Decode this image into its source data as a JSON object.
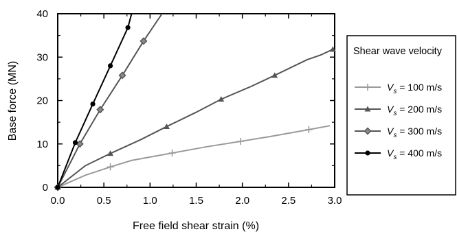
{
  "chart_data": {
    "type": "line",
    "title": "",
    "xlabel": "Free field shear strain (%)",
    "ylabel": "Base force (MN)",
    "xlim": [
      0,
      3.0
    ],
    "ylim": [
      0,
      40
    ],
    "xticks": [
      "0.0",
      "0.5",
      "1.0",
      "1.5",
      "2.0",
      "2.5",
      "3.0"
    ],
    "yticks": [
      "0",
      "10",
      "20",
      "30",
      "40"
    ],
    "legend": {
      "title": "Shear wave velocity",
      "placement": "right-outside"
    },
    "series": [
      {
        "name": "V_s = 100 m/s",
        "name_prefix": "V",
        "name_sub": "s",
        "name_suffix": " = 100 m/s",
        "color": "#9a9a9a",
        "marker": "plus",
        "x": [
          0,
          0.3,
          0.57,
          0.8,
          1.24,
          1.6,
          1.98,
          2.3,
          2.72,
          2.95
        ],
        "y": [
          0,
          2.8,
          4.7,
          6.2,
          7.9,
          9.3,
          10.6,
          11.7,
          13.3,
          14.2
        ],
        "markers_x": [
          0,
          0.57,
          1.24,
          1.98,
          2.72
        ],
        "markers_y": [
          0,
          4.7,
          7.9,
          10.6,
          13.3
        ]
      },
      {
        "name": "V_s = 200 m/s",
        "name_prefix": "V",
        "name_sub": "s",
        "name_suffix": " = 200 m/s",
        "color": "#555555",
        "marker": "triangle",
        "x": [
          0,
          0.3,
          0.57,
          0.9,
          1.18,
          1.5,
          1.77,
          2.1,
          2.35,
          2.7,
          2.85,
          2.98
        ],
        "y": [
          0,
          5.0,
          7.8,
          11.0,
          14.0,
          17.3,
          20.3,
          23.3,
          25.8,
          29.4,
          30.5,
          31.8
        ],
        "markers_x": [
          0,
          0.57,
          1.18,
          1.77,
          2.35,
          2.98
        ],
        "markers_y": [
          0,
          7.8,
          14.0,
          20.3,
          25.8,
          31.8
        ]
      },
      {
        "name": "V_s = 300 m/s",
        "name_prefix": "V",
        "name_sub": "s",
        "name_suffix": " = 300 m/s",
        "color": "#555555",
        "marker": "diamond",
        "x": [
          0,
          0.24,
          0.46,
          0.7,
          0.93,
          1.13
        ],
        "y": [
          0,
          10.0,
          17.9,
          25.8,
          33.7,
          40.0
        ],
        "markers_x": [
          0,
          0.24,
          0.46,
          0.7,
          0.93
        ],
        "markers_y": [
          0,
          10.0,
          17.9,
          25.8,
          33.7
        ]
      },
      {
        "name": "V_s = 400 m/s",
        "name_prefix": "V",
        "name_sub": "s",
        "name_suffix": " = 400 m/s",
        "color": "#000000",
        "marker": "circle",
        "x": [
          0,
          0.19,
          0.38,
          0.57,
          0.76,
          0.8
        ],
        "y": [
          0,
          10.3,
          19.2,
          28.0,
          36.8,
          40.0
        ],
        "markers_x": [
          0,
          0.19,
          0.38,
          0.57,
          0.76
        ],
        "markers_y": [
          0,
          10.3,
          19.2,
          28.0,
          36.8
        ]
      }
    ]
  }
}
